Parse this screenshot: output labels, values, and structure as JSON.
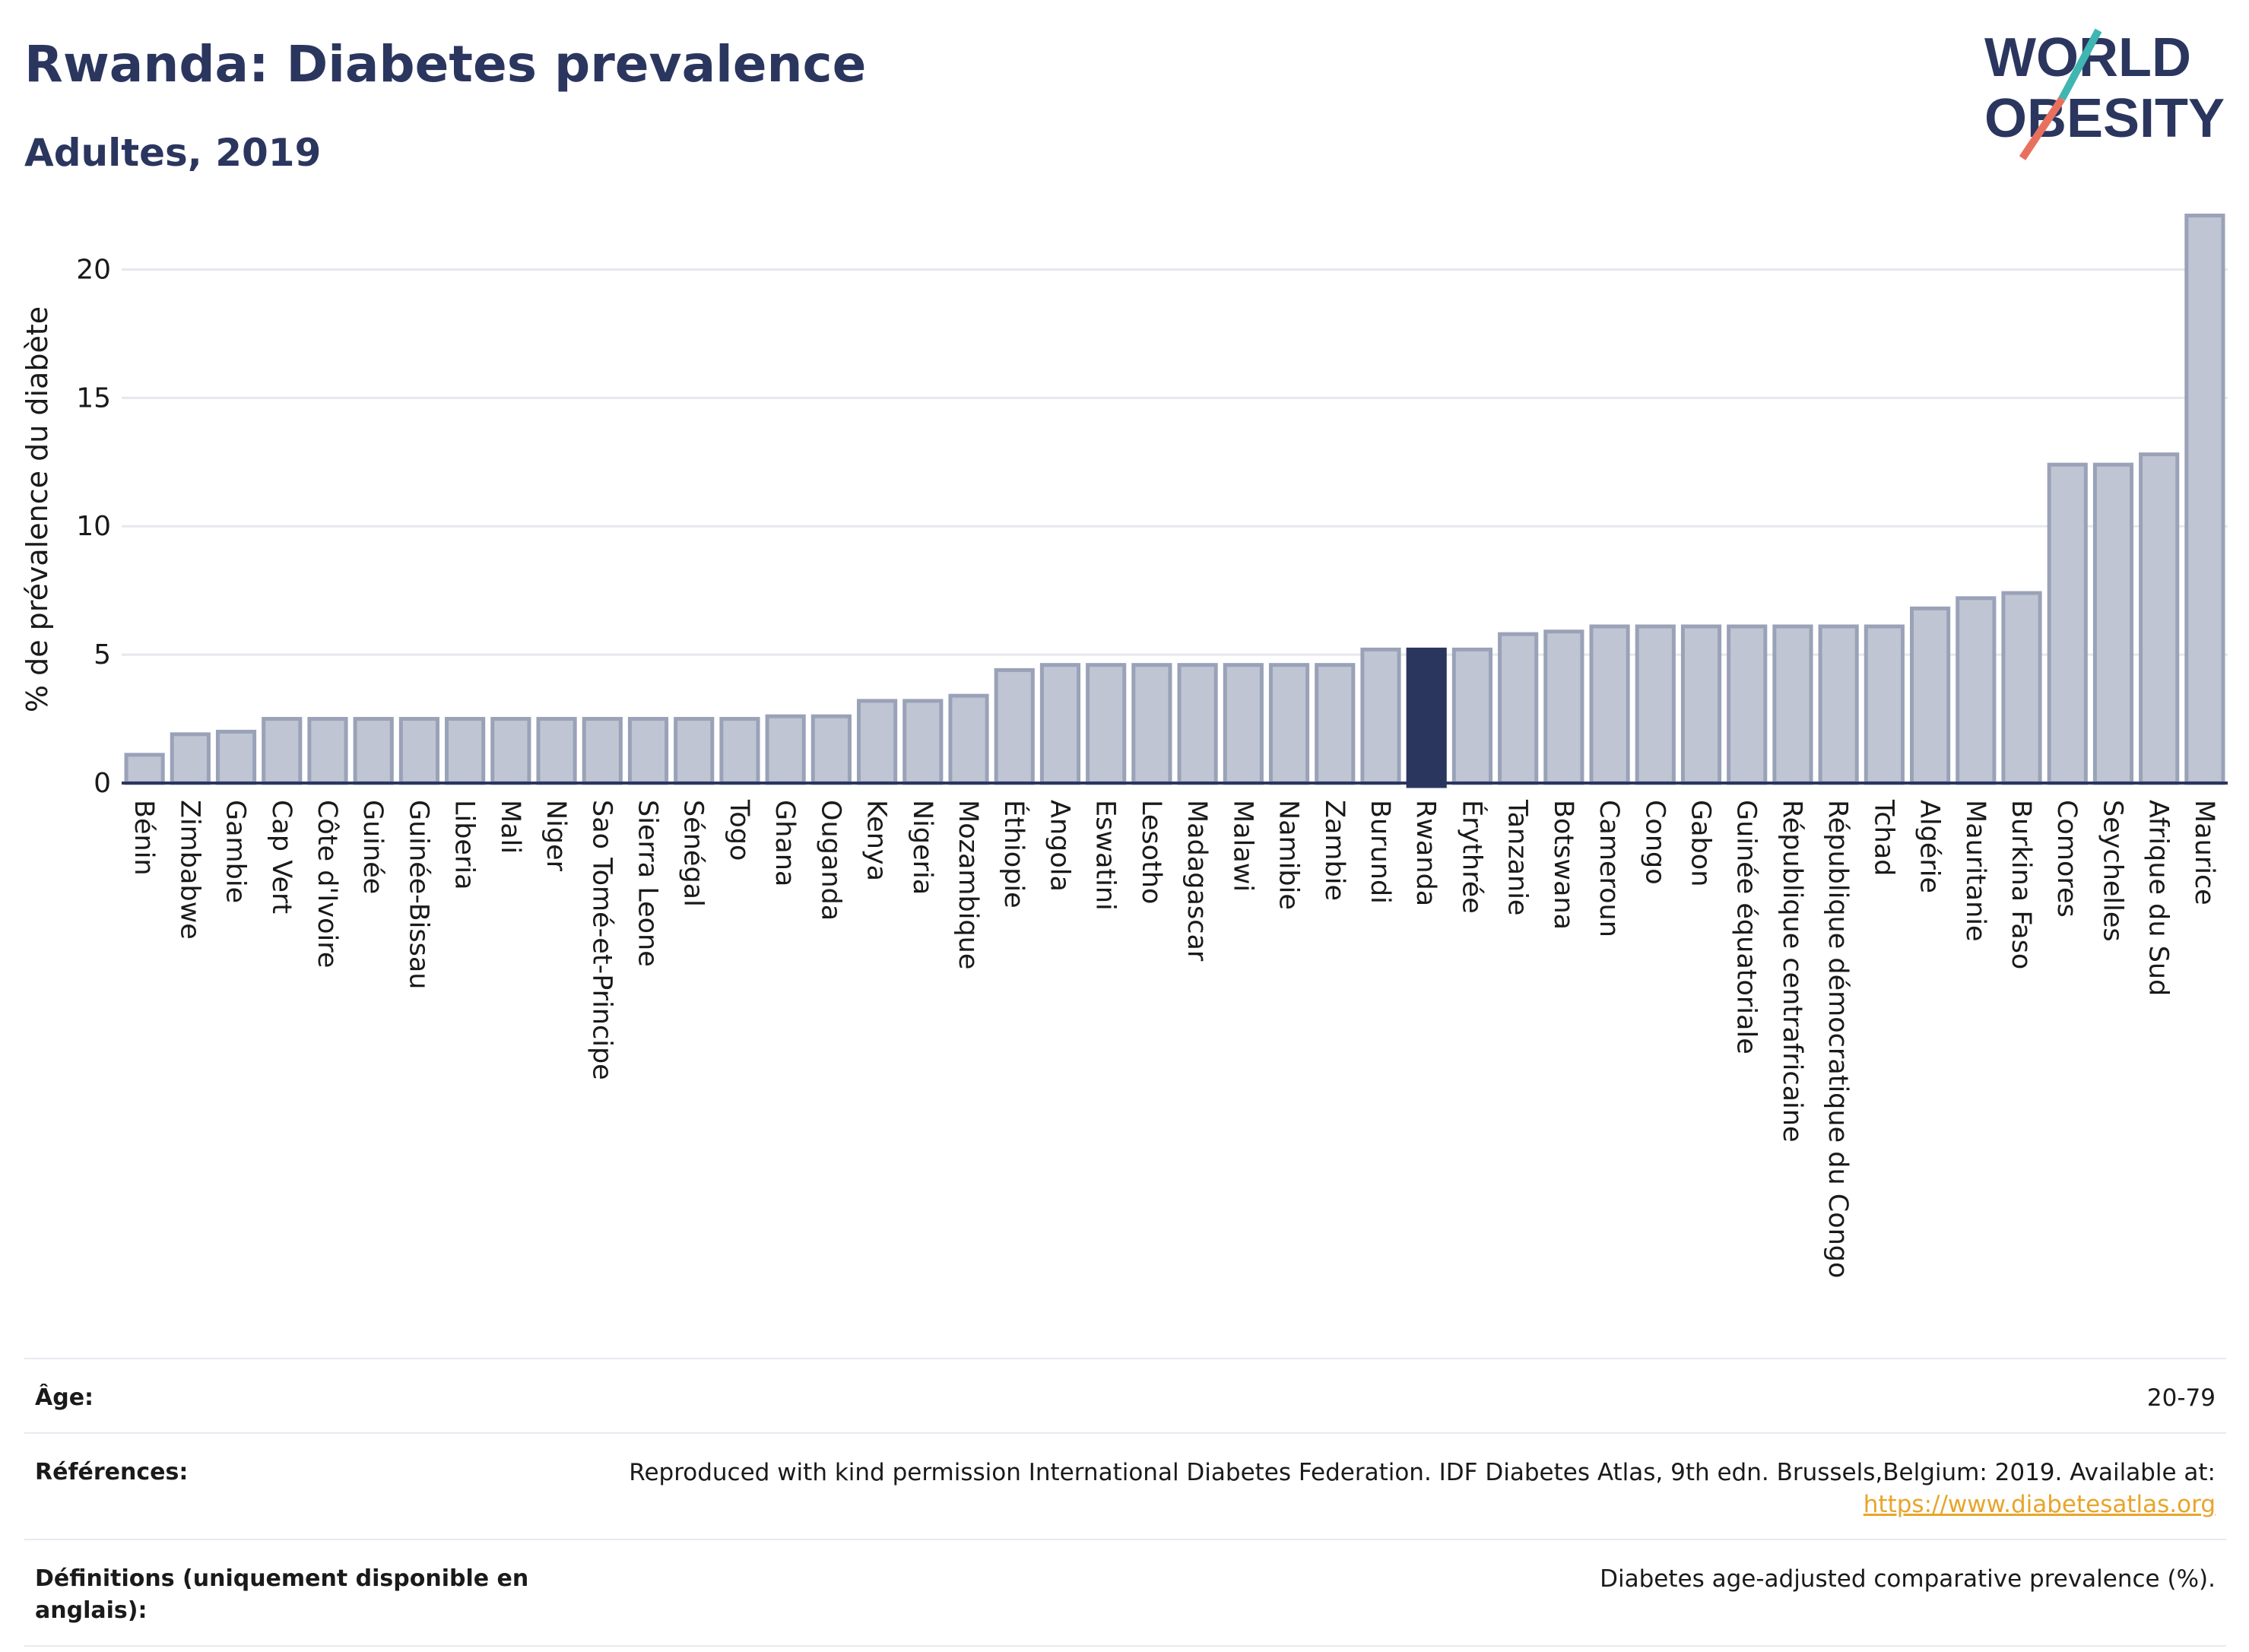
{
  "header": {
    "title": "Rwanda: Diabetes prevalence",
    "subtitle": "Adultes, 2019"
  },
  "logo": {
    "line1": "WORLD",
    "line2": "OBESITY",
    "accent_teal": "#3fb6b2",
    "accent_coral": "#e8705f",
    "text_color": "#2b365f"
  },
  "colors": {
    "bar": "#c0c5d3",
    "bar_border": "#9aa2b8",
    "highlight": "#2b365f",
    "axis": "#2b365f",
    "grid": "#e6e8ee"
  },
  "chart_data": {
    "type": "bar",
    "title": "",
    "ylabel": "% de prévalence du diabète",
    "xlabel": "",
    "ylim": [
      0,
      22.5
    ],
    "yticks": [
      0,
      5,
      10,
      15,
      20
    ],
    "grid": true,
    "highlight": "Rwanda",
    "categories": [
      "Bénin",
      "Zimbabwe",
      "Gambie",
      "Cap Vert",
      "Côte d'Ivoire",
      "Guinée",
      "Guinée-Bissau",
      "Liberia",
      "Mali",
      "Niger",
      "Sao Tomé-et-Principe",
      "Sierra Leone",
      "Sénégal",
      "Togo",
      "Ghana",
      "Ouganda",
      "Kenya",
      "Nigeria",
      "Mozambique",
      "Éthiopie",
      "Angola",
      "Eswatini",
      "Lesotho",
      "Madagascar",
      "Malawi",
      "Namibie",
      "Zambie",
      "Burundi",
      "Rwanda",
      "Érythrée",
      "Tanzanie",
      "Botswana",
      "Cameroun",
      "Congo",
      "Gabon",
      "Guinée équatoriale",
      "République centrafricaine",
      "République démocratique du Congo",
      "Tchad",
      "Algérie",
      "Mauritanie",
      "Burkina Faso",
      "Comores",
      "Seychelles",
      "Afrique du Sud",
      "Maurice"
    ],
    "values": [
      1.1,
      1.9,
      2.0,
      2.5,
      2.5,
      2.5,
      2.5,
      2.5,
      2.5,
      2.5,
      2.5,
      2.5,
      2.5,
      2.5,
      2.6,
      2.6,
      3.2,
      3.2,
      3.4,
      4.4,
      4.6,
      4.6,
      4.6,
      4.6,
      4.6,
      4.6,
      4.6,
      5.2,
      5.2,
      5.2,
      5.8,
      5.9,
      6.1,
      6.1,
      6.1,
      6.1,
      6.1,
      6.1,
      6.1,
      6.8,
      7.2,
      7.4,
      12.4,
      12.4,
      12.8,
      22.1
    ]
  },
  "meta": {
    "age_label": "Âge:",
    "age_value": "20-79",
    "refs_label": "Références:",
    "refs_value": "Reproduced with kind permission International Diabetes Federation. IDF Diabetes Atlas, 9th edn. Brussels,Belgium: 2019. Available at:",
    "refs_link": "https://www.diabetesatlas.org",
    "defs_label": "Définitions (uniquement disponible en anglais):",
    "defs_value": "Diabetes age-adjusted comparative prevalence (%)."
  }
}
